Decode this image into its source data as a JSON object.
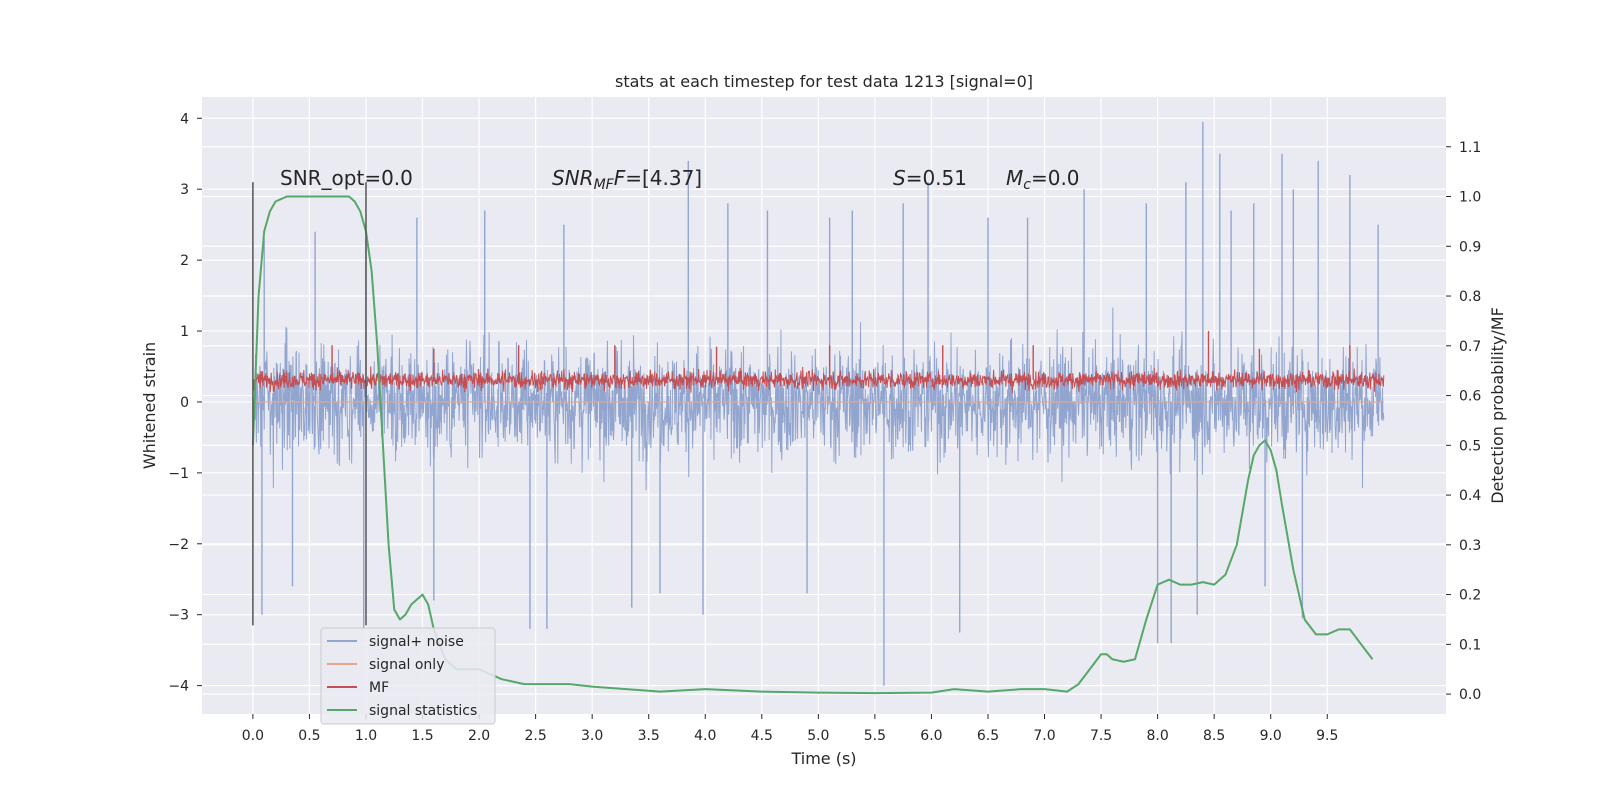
{
  "chart_data": {
    "type": "line",
    "title": "stats at each timestep for test data 1213 [signal=0]",
    "xlabel": "Time (s)",
    "ylabel": "Whitened strain",
    "y2label": "Detection probability/MF",
    "xlim": [
      -0.45,
      10.55
    ],
    "ylim": [
      -4.4,
      4.3
    ],
    "y2lim": [
      -0.04,
      1.2
    ],
    "x_ticks": [
      "0.0",
      "0.5",
      "1.0",
      "1.5",
      "2.0",
      "2.5",
      "3.0",
      "3.5",
      "4.0",
      "4.5",
      "5.0",
      "5.5",
      "6.0",
      "6.5",
      "7.0",
      "7.5",
      "8.0",
      "8.5",
      "9.0",
      "9.5"
    ],
    "y_ticks": [
      "−4",
      "−3",
      "−2",
      "−1",
      "0",
      "1",
      "2",
      "3",
      "4"
    ],
    "y2_ticks": [
      "0.0",
      "0.1",
      "0.2",
      "0.3",
      "0.4",
      "0.5",
      "0.6",
      "0.7",
      "0.8",
      "0.9",
      "1.0",
      "1.1"
    ],
    "grid": true,
    "legend_position": "lower-left",
    "annotations": {
      "snr_opt": "SNR_opt=0.0",
      "snr_mf_prefix": "SNR",
      "snr_mf_sub": "MF",
      "snr_mf_value": "=[4.37]",
      "s_label": "S",
      "s_value": "=0.51",
      "mc_label": "M",
      "mc_sub": "c",
      "mc_value": "=0.0"
    },
    "window_markers": [
      0.0,
      1.0
    ],
    "series": [
      {
        "name": "signal+ noise",
        "color": "#92a5cf",
        "axis": "left",
        "x_range": [
          0.0,
          10.0
        ],
        "typical_band": [
          -1.3,
          1.3
        ],
        "spikes": [
          [
            0.08,
            -3.0
          ],
          [
            0.1,
            2.3
          ],
          [
            0.35,
            -2.6
          ],
          [
            0.55,
            2.4
          ],
          [
            0.98,
            -3.2
          ],
          [
            1.0,
            2.25
          ],
          [
            1.45,
            2.6
          ],
          [
            1.6,
            -2.8
          ],
          [
            2.05,
            2.7
          ],
          [
            2.45,
            -3.2
          ],
          [
            2.6,
            -3.2
          ],
          [
            2.75,
            2.5
          ],
          [
            3.35,
            -2.9
          ],
          [
            3.6,
            -2.7
          ],
          [
            3.85,
            3.4
          ],
          [
            3.98,
            -3.0
          ],
          [
            4.2,
            2.8
          ],
          [
            4.55,
            2.7
          ],
          [
            4.9,
            -2.7
          ],
          [
            5.1,
            2.6
          ],
          [
            5.3,
            2.7
          ],
          [
            5.58,
            -4.0
          ],
          [
            5.75,
            2.8
          ],
          [
            5.97,
            3.1
          ],
          [
            6.25,
            -3.25
          ],
          [
            6.5,
            2.6
          ],
          [
            6.85,
            2.6
          ],
          [
            7.35,
            3.0
          ],
          [
            7.9,
            2.8
          ],
          [
            8.0,
            -3.4
          ],
          [
            8.12,
            -3.4
          ],
          [
            8.25,
            3.1
          ],
          [
            8.35,
            -3.0
          ],
          [
            8.4,
            3.95
          ],
          [
            8.55,
            3.5
          ],
          [
            8.65,
            2.7
          ],
          [
            8.85,
            2.8
          ],
          [
            8.95,
            -2.6
          ],
          [
            9.1,
            3.5
          ],
          [
            9.2,
            3.0
          ],
          [
            9.28,
            -3.05
          ],
          [
            9.42,
            3.4
          ],
          [
            9.7,
            3.2
          ],
          [
            9.95,
            2.5
          ]
        ]
      },
      {
        "name": "signal only",
        "color": "#e8a688",
        "axis": "left",
        "y_value": 0.0
      },
      {
        "name": "MF",
        "color": "#c44e52",
        "axis": "left",
        "x_range": [
          0.0,
          10.0
        ],
        "typical_band": [
          0.05,
          0.58
        ],
        "spikes": [
          [
            0.7,
            0.8
          ],
          [
            1.6,
            0.75
          ],
          [
            2.35,
            0.8
          ],
          [
            3.2,
            0.8
          ],
          [
            4.1,
            0.78
          ],
          [
            5.1,
            0.8
          ],
          [
            6.1,
            0.8
          ],
          [
            6.9,
            0.8
          ],
          [
            8.45,
            1.0
          ],
          [
            8.9,
            0.75
          ],
          [
            9.7,
            0.8
          ]
        ]
      },
      {
        "name": "signal statistics",
        "color": "#55a868",
        "axis": "right",
        "x": [
          0.0,
          0.05,
          0.1,
          0.15,
          0.2,
          0.3,
          0.5,
          0.7,
          0.85,
          0.9,
          0.95,
          1.0,
          1.05,
          1.1,
          1.15,
          1.2,
          1.25,
          1.3,
          1.35,
          1.4,
          1.5,
          1.55,
          1.6,
          1.7,
          1.8,
          1.9,
          2.0,
          2.1,
          2.2,
          2.4,
          2.6,
          2.8,
          3.0,
          3.3,
          3.6,
          4.0,
          4.5,
          5.0,
          5.5,
          6.0,
          6.2,
          6.5,
          6.8,
          7.0,
          7.2,
          7.3,
          7.4,
          7.5,
          7.55,
          7.6,
          7.7,
          7.8,
          7.9,
          8.0,
          8.1,
          8.2,
          8.3,
          8.4,
          8.5,
          8.6,
          8.7,
          8.8,
          8.85,
          8.9,
          8.95,
          9.0,
          9.05,
          9.1,
          9.2,
          9.3,
          9.4,
          9.5,
          9.6,
          9.7,
          9.8,
          9.9
        ],
        "values": [
          0.5,
          0.8,
          0.93,
          0.97,
          0.99,
          1.0,
          1.0,
          1.0,
          1.0,
          0.99,
          0.97,
          0.93,
          0.85,
          0.7,
          0.5,
          0.3,
          0.17,
          0.15,
          0.16,
          0.18,
          0.2,
          0.18,
          0.13,
          0.07,
          0.05,
          0.05,
          0.05,
          0.04,
          0.03,
          0.02,
          0.02,
          0.02,
          0.015,
          0.01,
          0.005,
          0.01,
          0.005,
          0.003,
          0.002,
          0.003,
          0.01,
          0.005,
          0.01,
          0.01,
          0.005,
          0.02,
          0.05,
          0.08,
          0.08,
          0.07,
          0.065,
          0.07,
          0.15,
          0.22,
          0.23,
          0.22,
          0.22,
          0.225,
          0.22,
          0.24,
          0.3,
          0.43,
          0.48,
          0.5,
          0.51,
          0.49,
          0.45,
          0.38,
          0.25,
          0.15,
          0.12,
          0.12,
          0.13,
          0.13,
          0.1,
          0.07
        ]
      }
    ]
  }
}
